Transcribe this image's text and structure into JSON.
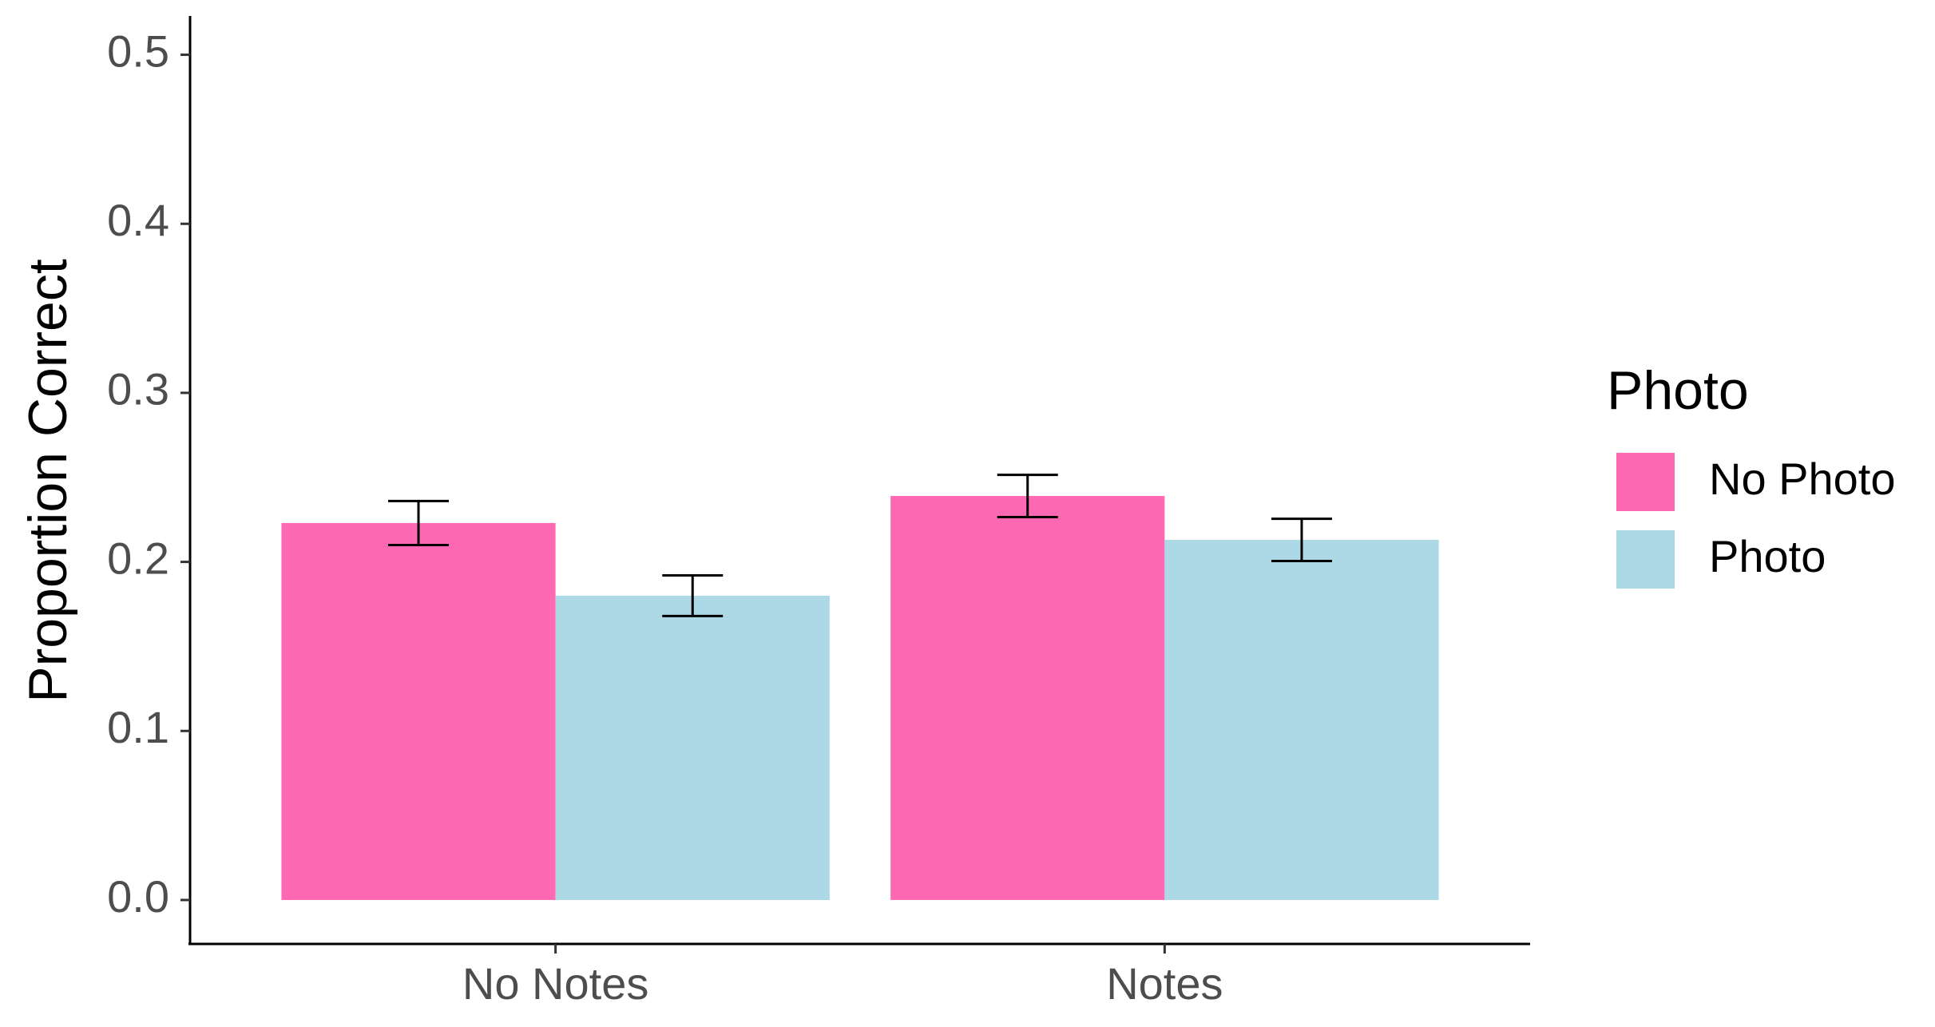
{
  "chart_data": {
    "type": "bar",
    "y_label": "Proportion Correct",
    "legend_title": "Photo",
    "legend_position": "right",
    "categories": [
      "No Notes",
      "Notes"
    ],
    "series": [
      {
        "name": "No Photo",
        "color": "#ff69b4",
        "values": [
          0.223,
          0.239
        ],
        "errors": [
          0.013,
          0.0125
        ]
      },
      {
        "name": "Photo",
        "color": "#add8e6",
        "values": [
          0.18,
          0.213
        ],
        "errors": [
          0.012,
          0.0125
        ]
      }
    ],
    "ylim": [
      -0.026,
      0.522
    ],
    "yticks": [
      {
        "value": 0,
        "label": "0.0"
      },
      0.1,
      0.2,
      0.3,
      0.4,
      0.5
    ],
    "grid": false
  }
}
